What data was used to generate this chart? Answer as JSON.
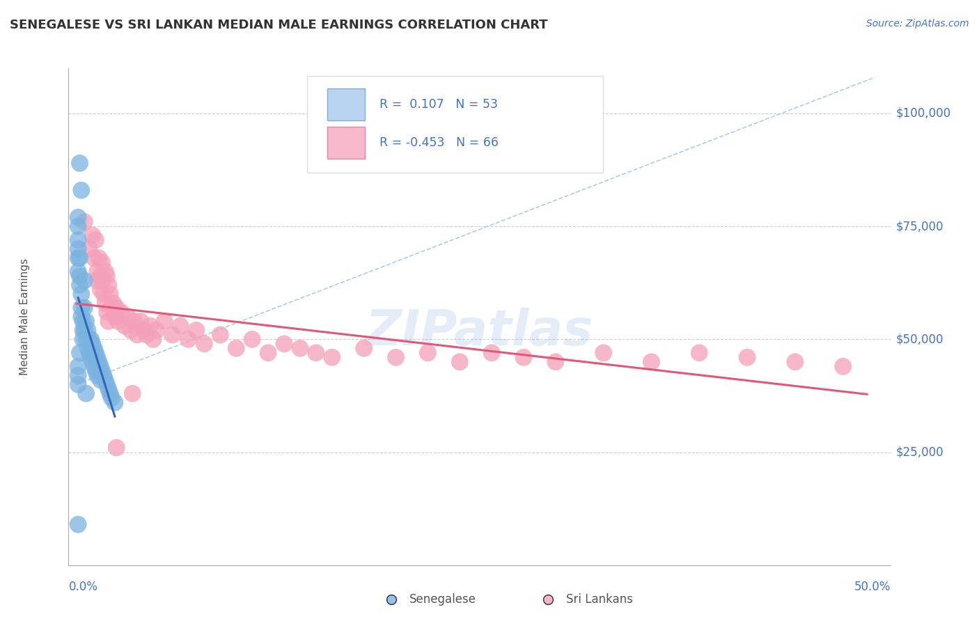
{
  "title": "SENEGALESE VS SRI LANKAN MEDIAN MALE EARNINGS CORRELATION CHART",
  "source": "Source: ZipAtlas.com",
  "ylabel": "Median Male Earnings",
  "ytick_vals": [
    25000,
    50000,
    75000,
    100000
  ],
  "ytick_labels": [
    "$25,000",
    "$50,000",
    "$75,000",
    "$100,000"
  ],
  "xlim": [
    0.0,
    0.5
  ],
  "ylim": [
    0,
    110000
  ],
  "blue_dot_color": "#7ab3e0",
  "pink_dot_color": "#f4a0b8",
  "blue_line_color": "#3366bb",
  "pink_line_color": "#e05878",
  "dash_line_color": "#aaccee",
  "grid_color": "#cccccc",
  "title_color": "#333333",
  "right_label_color": "#4472c4",
  "watermark_color": "#aaccee",
  "legend_r1": "R =  0.107   N = 53",
  "legend_r2": "R = -0.453   N = 66",
  "legend_blue_fill": "#b8d4f0",
  "legend_pink_fill": "#f8b8cc",
  "bottom_labels": [
    "Senegalese",
    "Sri Lankans"
  ],
  "senegalese_x": [
    0.001,
    0.001,
    0.001,
    0.001,
    0.001,
    0.002,
    0.002,
    0.002,
    0.003,
    0.003,
    0.003,
    0.004,
    0.004,
    0.004,
    0.005,
    0.005,
    0.005,
    0.006,
    0.006,
    0.007,
    0.007,
    0.008,
    0.008,
    0.009,
    0.009,
    0.01,
    0.01,
    0.011,
    0.011,
    0.012,
    0.012,
    0.013,
    0.013,
    0.014,
    0.015,
    0.015,
    0.016,
    0.017,
    0.018,
    0.019,
    0.02,
    0.021,
    0.022,
    0.024,
    0.002,
    0.003,
    0.001,
    0.002,
    0.001,
    0.001,
    0.001,
    0.006,
    0.001
  ],
  "senegalese_y": [
    75000,
    72000,
    70000,
    68000,
    65000,
    68000,
    64000,
    62000,
    60000,
    57000,
    55000,
    54000,
    52000,
    50000,
    63000,
    57000,
    52000,
    54000,
    50000,
    52000,
    48000,
    50000,
    47000,
    50000,
    46000,
    49000,
    45000,
    48000,
    44000,
    47000,
    43000,
    46000,
    42000,
    45000,
    44000,
    41000,
    43000,
    42000,
    41000,
    40000,
    39000,
    38000,
    37000,
    36000,
    89000,
    83000,
    77000,
    47000,
    44000,
    42000,
    40000,
    38000,
    9000
  ],
  "srilanka_x": [
    0.005,
    0.008,
    0.01,
    0.011,
    0.012,
    0.013,
    0.013,
    0.014,
    0.015,
    0.015,
    0.016,
    0.016,
    0.017,
    0.018,
    0.018,
    0.019,
    0.019,
    0.02,
    0.02,
    0.021,
    0.022,
    0.023,
    0.024,
    0.025,
    0.026,
    0.028,
    0.03,
    0.032,
    0.034,
    0.036,
    0.038,
    0.04,
    0.042,
    0.044,
    0.046,
    0.048,
    0.05,
    0.055,
    0.06,
    0.065,
    0.07,
    0.075,
    0.08,
    0.09,
    0.1,
    0.11,
    0.12,
    0.13,
    0.14,
    0.15,
    0.16,
    0.18,
    0.2,
    0.22,
    0.24,
    0.26,
    0.28,
    0.3,
    0.33,
    0.36,
    0.39,
    0.42,
    0.45,
    0.48,
    0.025,
    0.035
  ],
  "srilanka_y": [
    76000,
    70000,
    73000,
    68000,
    72000,
    65000,
    63000,
    68000,
    64000,
    61000,
    67000,
    63000,
    60000,
    65000,
    58000,
    64000,
    56000,
    62000,
    54000,
    60000,
    57000,
    58000,
    55000,
    57000,
    54000,
    56000,
    53000,
    55000,
    52000,
    54000,
    51000,
    54000,
    52000,
    51000,
    53000,
    50000,
    52000,
    54000,
    51000,
    53000,
    50000,
    52000,
    49000,
    51000,
    48000,
    50000,
    47000,
    49000,
    48000,
    47000,
    46000,
    48000,
    46000,
    47000,
    45000,
    47000,
    46000,
    45000,
    47000,
    45000,
    47000,
    46000,
    45000,
    44000,
    26000,
    38000
  ]
}
